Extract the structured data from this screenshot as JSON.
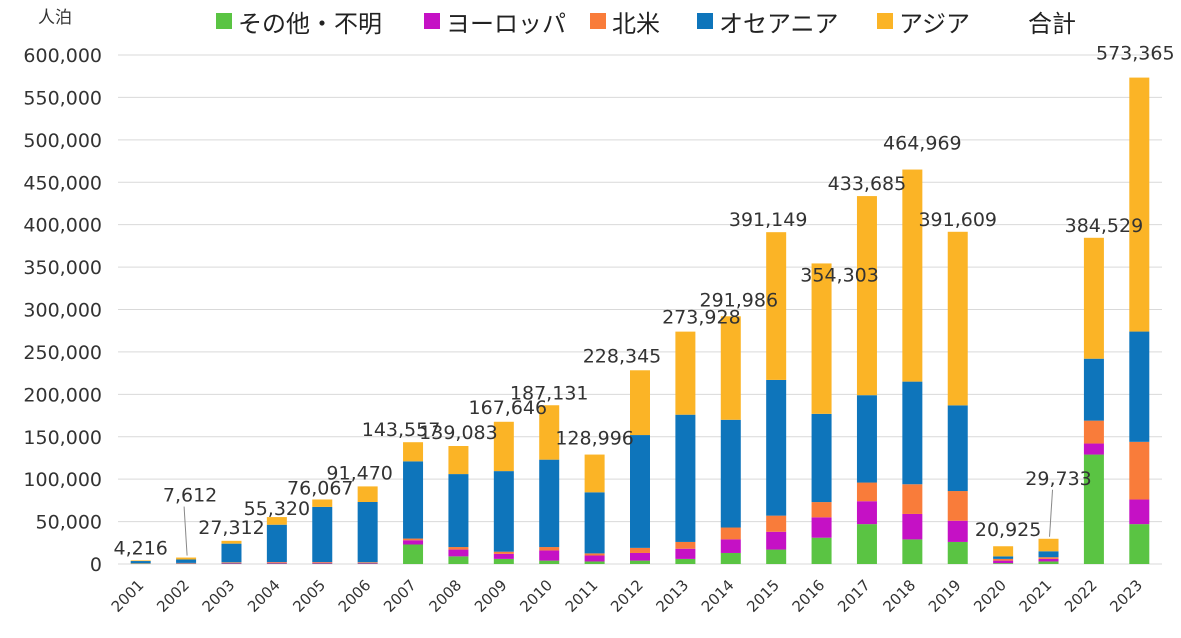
{
  "chart_data": {
    "type": "bar",
    "stacked": true,
    "unit_label": "人泊",
    "legend_total_label": "合計",
    "categories": [
      "2001",
      "2002",
      "2003",
      "2004",
      "2005",
      "2006",
      "2007",
      "2008",
      "2009",
      "2010",
      "2011",
      "2012",
      "2013",
      "2014",
      "2015",
      "2016",
      "2017",
      "2018",
      "2019",
      "2020",
      "2021",
      "2022",
      "2023"
    ],
    "series": [
      {
        "name": "その他・不明",
        "color": "#5ac443",
        "values": [
          500,
          500,
          500,
          500,
          500,
          500,
          23000,
          9000,
          6000,
          4000,
          3000,
          4000,
          6000,
          13000,
          17000,
          31000,
          47000,
          29000,
          26000,
          1000,
          3000,
          129000,
          47000
        ]
      },
      {
        "name": "ヨーロッパ",
        "color": "#c511c5",
        "values": [
          300,
          500,
          800,
          1000,
          1000,
          800,
          5000,
          8000,
          6000,
          12000,
          7000,
          9000,
          12000,
          16000,
          21000,
          24000,
          27000,
          30000,
          25000,
          3000,
          3000,
          13000,
          29000
        ]
      },
      {
        "name": "北米",
        "color": "#f97c3a",
        "values": [
          200,
          300,
          700,
          800,
          800,
          800,
          2000,
          3000,
          2500,
          4000,
          2500,
          6000,
          8000,
          14000,
          19000,
          18000,
          22000,
          35000,
          35000,
          2000,
          2000,
          27000,
          68000
        ]
      },
      {
        "name": "オセアニア",
        "color": "#0e75bb",
        "values": [
          2500,
          4000,
          22000,
          44000,
          65000,
          71000,
          91000,
          86000,
          95000,
          103000,
          72000,
          133000,
          150000,
          127000,
          160000,
          104000,
          103000,
          121000,
          101000,
          3000,
          7000,
          73000,
          130000
        ]
      },
      {
        "name": "アジア",
        "color": "#fbb426",
        "values": [
          716,
          2312,
          3312,
          9020,
          8767,
          18370,
          22557,
          33083,
          58146,
          64131,
          44496,
          76345,
          97928,
          121986,
          174149,
          177303,
          234685,
          249969,
          204609,
          11925,
          14733,
          142529,
          299365
        ]
      }
    ],
    "totals": [
      4216,
      7612,
      27312,
      55320,
      76067,
      91470,
      143557,
      139083,
      167646,
      187131,
      128996,
      228345,
      273928,
      291986,
      391149,
      354303,
      433685,
      464969,
      391609,
      20925,
      29733,
      384529,
      573365
    ],
    "total_labels": [
      "4,216",
      "7,612",
      "27,312",
      "55,320",
      "76,067",
      "91,470",
      "143,557",
      "139,083",
      "167,646",
      "187,131",
      "128,996",
      "228,345",
      "273,928",
      "291,986",
      "391,149",
      "354,303",
      "433,685",
      "464,969",
      "391,609",
      "20,925",
      "29,733",
      "384,529",
      "573,365"
    ],
    "y_ticks": [
      0,
      50000,
      100000,
      150000,
      200000,
      250000,
      300000,
      350000,
      400000,
      450000,
      500000,
      550000,
      600000
    ],
    "y_tick_labels": [
      "0",
      "50,000",
      "100,000",
      "150,000",
      "200,000",
      "250,000",
      "300,000",
      "350,000",
      "400,000",
      "450,000",
      "500,000",
      "550,000",
      "600,000"
    ],
    "ylim": [
      0,
      600000
    ],
    "grid": true,
    "legend_position": "top"
  }
}
